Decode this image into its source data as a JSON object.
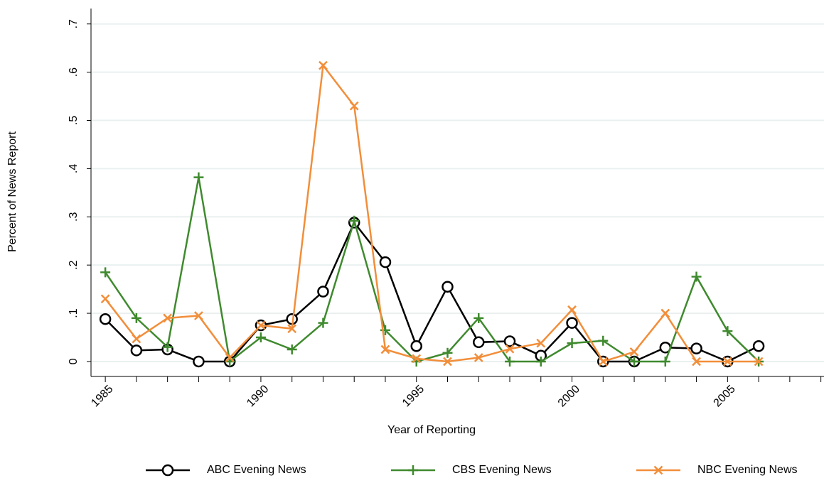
{
  "chart_data": {
    "type": "line",
    "x": [
      1985,
      1986,
      1987,
      1988,
      1989,
      1990,
      1991,
      1992,
      1993,
      1994,
      1995,
      1996,
      1997,
      1998,
      1999,
      2000,
      2001,
      2002,
      2003,
      2004,
      2005,
      2006
    ],
    "series": [
      {
        "name": "ABC Evening News",
        "color": "#000000",
        "marker": "circle",
        "values": [
          0.088,
          0.023,
          0.025,
          0,
          0,
          0.075,
          0.088,
          0.145,
          0.288,
          0.206,
          0.032,
          0.155,
          0.04,
          0.042,
          0.012,
          0.08,
          0,
          0,
          0.029,
          0.027,
          0,
          0.032
        ]
      },
      {
        "name": "CBS Evening News",
        "color": "#3f8a2e",
        "marker": "plus",
        "values": [
          0.185,
          0.09,
          0.03,
          0.382,
          0,
          0.05,
          0.025,
          0.08,
          0.292,
          0.065,
          0,
          0.018,
          0.09,
          0,
          0,
          0.038,
          0.043,
          0,
          0,
          0.176,
          0.063,
          0
        ]
      },
      {
        "name": "NBC Evening News",
        "color": "#f28e3a",
        "marker": "x",
        "values": [
          0.13,
          0.047,
          0.09,
          0.095,
          0.008,
          0.075,
          0.068,
          0.614,
          0.53,
          0.025,
          0.006,
          0,
          0.008,
          0.026,
          0.038,
          0.107,
          0,
          0.02,
          0.1,
          0,
          0,
          0
        ]
      }
    ],
    "xlabel": "Year of Reporting",
    "ylabel": "Percent of News Report",
    "xlim": [
      1984.54,
      2008.1
    ],
    "ylim": [
      -0.031,
      0.732
    ],
    "xticks": [
      1985,
      1990,
      1995,
      2000,
      2005
    ],
    "xminorticks": [
      1986,
      1987,
      1988,
      1989,
      1991,
      1992,
      1993,
      1994,
      1996,
      1997,
      1998,
      1999,
      2001,
      2002,
      2003,
      2004,
      2006,
      2007,
      2008
    ],
    "yticks": [
      0,
      {
        "value": 0.1,
        "label": ".1"
      },
      {
        "value": 0.2,
        "label": ".2"
      },
      {
        "value": 0.3,
        "label": ".3"
      },
      {
        "value": 0.4,
        "label": ".4"
      },
      {
        "value": 0.5,
        "label": ".5"
      },
      {
        "value": 0.6,
        "label": ".6"
      },
      {
        "value": 0.7,
        "label": ".7"
      }
    ],
    "grid": true,
    "legend": "bottom"
  }
}
